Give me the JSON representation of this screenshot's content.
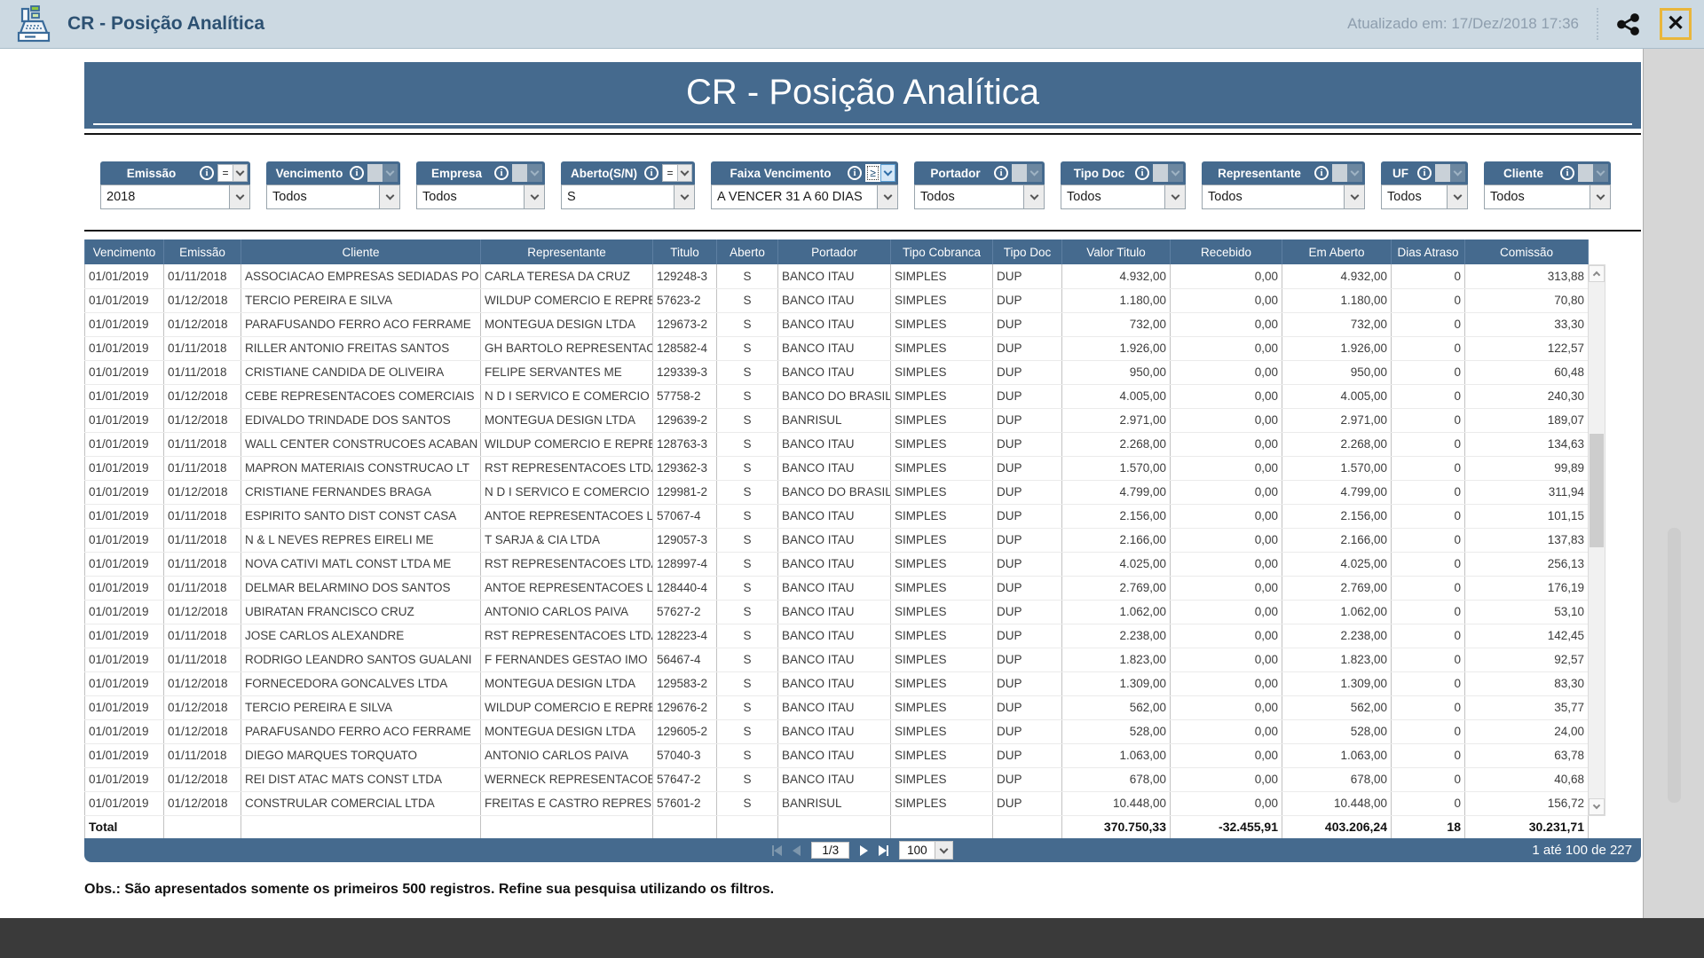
{
  "topbar": {
    "title": "CR - Posição Analítica",
    "updated": "Atualizado em: 17/Dez/2018 17:36"
  },
  "banner": {
    "title": "CR - Posição Analítica"
  },
  "filters": [
    {
      "label": "Emissão",
      "operator": "=",
      "state": "eq",
      "value": "2018"
    },
    {
      "label": "Vencimento",
      "operator": "",
      "state": "none",
      "value": "Todos"
    },
    {
      "label": "Empresa",
      "operator": "",
      "state": "none",
      "value": "Todos"
    },
    {
      "label": "Aberto(S/N)",
      "operator": "=",
      "state": "eq",
      "value": "S"
    },
    {
      "label": "Faixa Vencimento",
      "operator": "≥",
      "state": "focus",
      "value": "A VENCER 31 A 60 DIAS"
    },
    {
      "label": "Portador",
      "operator": "",
      "state": "none",
      "value": "Todos"
    },
    {
      "label": "Tipo Doc",
      "operator": "",
      "state": "none",
      "value": "Todos"
    },
    {
      "label": "Representante",
      "operator": "",
      "state": "none",
      "value": "Todos"
    },
    {
      "label": "UF",
      "operator": "",
      "state": "none",
      "value": "Todos"
    },
    {
      "label": "Cliente",
      "operator": "",
      "state": "none",
      "value": "Todos"
    }
  ],
  "table": {
    "columns": [
      "Vencimento",
      "Emissão",
      "Cliente",
      "Representante",
      "Titulo",
      "Aberto",
      "Portador",
      "Tipo Cobranca",
      "Tipo Doc",
      "Valor Titulo",
      "Recebido",
      "Em Aberto",
      "Dias Atraso",
      "Comissão"
    ],
    "rows": [
      [
        "01/01/2019",
        "01/11/2018",
        "ASSOCIACAO EMPRESAS SEDIADAS PO",
        "CARLA TERESA DA CRUZ",
        "129248-3",
        "S",
        "BANCO ITAU",
        "SIMPLES",
        "DUP",
        "4.932,00",
        "0,00",
        "4.932,00",
        "0",
        "313,88"
      ],
      [
        "01/01/2019",
        "01/12/2018",
        "TERCIO PEREIRA E SILVA",
        "WILDUP COMERCIO E REPRE",
        "57623-2",
        "S",
        "BANCO ITAU",
        "SIMPLES",
        "DUP",
        "1.180,00",
        "0,00",
        "1.180,00",
        "0",
        "70,80"
      ],
      [
        "01/01/2019",
        "01/12/2018",
        "PARAFUSANDO FERRO ACO  FERRAME",
        "MONTEGUA DESIGN LTDA",
        "129673-2",
        "S",
        "BANCO ITAU",
        "SIMPLES",
        "DUP",
        "732,00",
        "0,00",
        "732,00",
        "0",
        "33,30"
      ],
      [
        "01/01/2019",
        "01/11/2018",
        "RILLER ANTONIO FREITAS SANTOS",
        "GH BARTOLO REPRESENTAC",
        "128582-4",
        "S",
        "BANCO ITAU",
        "SIMPLES",
        "DUP",
        "1.926,00",
        "0,00",
        "1.926,00",
        "0",
        "122,57"
      ],
      [
        "01/01/2019",
        "01/11/2018",
        "CRISTIANE CANDIDA DE OLIVEIRA",
        "FELIPE SERVANTES ME",
        "129339-3",
        "S",
        "BANCO ITAU",
        "SIMPLES",
        "DUP",
        "950,00",
        "0,00",
        "950,00",
        "0",
        "60,48"
      ],
      [
        "01/01/2019",
        "01/12/2018",
        "CEBE REPRESENTACOES COMERCIAIS",
        "N D I SERVICO E COMERCIO",
        "57758-2",
        "S",
        "BANCO DO BRASIL",
        "SIMPLES",
        "DUP",
        "4.005,00",
        "0,00",
        "4.005,00",
        "0",
        "240,30"
      ],
      [
        "01/01/2019",
        "01/12/2018",
        "EDIVALDO TRINDADE DOS SANTOS",
        "MONTEGUA DESIGN LTDA",
        "129639-2",
        "S",
        "BANRISUL",
        "SIMPLES",
        "DUP",
        "2.971,00",
        "0,00",
        "2.971,00",
        "0",
        "189,07"
      ],
      [
        "01/01/2019",
        "01/11/2018",
        "WALL CENTER CONSTRUCOES ACABAN",
        "WILDUP COMERCIO E REPRE",
        "128763-3",
        "S",
        "BANCO ITAU",
        "SIMPLES",
        "DUP",
        "2.268,00",
        "0,00",
        "2.268,00",
        "0",
        "134,63"
      ],
      [
        "01/01/2019",
        "01/11/2018",
        "MAPRON MATERIAIS CONSTRUCAO LT",
        "RST REPRESENTACOES LTDA",
        "129362-3",
        "S",
        "BANCO ITAU",
        "SIMPLES",
        "DUP",
        "1.570,00",
        "0,00",
        "1.570,00",
        "0",
        "99,89"
      ],
      [
        "01/01/2019",
        "01/12/2018",
        "CRISTIANE FERNANDES BRAGA",
        "N D I SERVICO E COMERCIO",
        "129981-2",
        "S",
        "BANCO DO BRASIL",
        "SIMPLES",
        "DUP",
        "4.799,00",
        "0,00",
        "4.799,00",
        "0",
        "311,94"
      ],
      [
        "01/01/2019",
        "01/11/2018",
        "ESPIRITO SANTO DIST CONST CASA",
        "ANTOE REPRESENTACOES LT",
        "57067-4",
        "S",
        "BANCO ITAU",
        "SIMPLES",
        "DUP",
        "2.156,00",
        "0,00",
        "2.156,00",
        "0",
        "101,15"
      ],
      [
        "01/01/2019",
        "01/11/2018",
        "N & L NEVES REPRES EIRELI ME",
        "T SARJA & CIA LTDA",
        "129057-3",
        "S",
        "BANCO ITAU",
        "SIMPLES",
        "DUP",
        "2.166,00",
        "0,00",
        "2.166,00",
        "0",
        "137,83"
      ],
      [
        "01/01/2019",
        "01/11/2018",
        "NOVA CATIVI MATL CONST LTDA ME",
        "RST REPRESENTACOES LTDA",
        "128997-4",
        "S",
        "BANCO ITAU",
        "SIMPLES",
        "DUP",
        "4.025,00",
        "0,00",
        "4.025,00",
        "0",
        "256,13"
      ],
      [
        "01/01/2019",
        "01/11/2018",
        "DELMAR BELARMINO DOS SANTOS",
        "ANTOE REPRESENTACOES LT",
        "128440-4",
        "S",
        "BANCO ITAU",
        "SIMPLES",
        "DUP",
        "2.769,00",
        "0,00",
        "2.769,00",
        "0",
        "176,19"
      ],
      [
        "01/01/2019",
        "01/12/2018",
        "UBIRATAN FRANCISCO CRUZ",
        "ANTONIO CARLOS PAIVA",
        "57627-2",
        "S",
        "BANCO ITAU",
        "SIMPLES",
        "DUP",
        "1.062,00",
        "0,00",
        "1.062,00",
        "0",
        "53,10"
      ],
      [
        "01/01/2019",
        "01/11/2018",
        "JOSE CARLOS ALEXANDRE",
        "RST REPRESENTACOES LTDA",
        "128223-4",
        "S",
        "BANCO ITAU",
        "SIMPLES",
        "DUP",
        "2.238,00",
        "0,00",
        "2.238,00",
        "0",
        "142,45"
      ],
      [
        "01/01/2019",
        "01/11/2018",
        "RODRIGO LEANDRO SANTOS GUALANI",
        "F FERNANDES GESTAO IMO",
        "56467-4",
        "S",
        "BANCO ITAU",
        "SIMPLES",
        "DUP",
        "1.823,00",
        "0,00",
        "1.823,00",
        "0",
        "92,57"
      ],
      [
        "01/01/2019",
        "01/12/2018",
        "FORNECEDORA GONCALVES LTDA",
        "MONTEGUA DESIGN LTDA",
        "129583-2",
        "S",
        "BANCO ITAU",
        "SIMPLES",
        "DUP",
        "1.309,00",
        "0,00",
        "1.309,00",
        "0",
        "83,30"
      ],
      [
        "01/01/2019",
        "01/12/2018",
        "TERCIO PEREIRA E SILVA",
        "WILDUP COMERCIO E REPRE",
        "129676-2",
        "S",
        "BANCO ITAU",
        "SIMPLES",
        "DUP",
        "562,00",
        "0,00",
        "562,00",
        "0",
        "35,77"
      ],
      [
        "01/01/2019",
        "01/12/2018",
        "PARAFUSANDO FERRO ACO  FERRAME",
        "MONTEGUA DESIGN LTDA",
        "129605-2",
        "S",
        "BANCO ITAU",
        "SIMPLES",
        "DUP",
        "528,00",
        "0,00",
        "528,00",
        "0",
        "24,00"
      ],
      [
        "01/01/2019",
        "01/11/2018",
        "DIEGO MARQUES TORQUATO",
        "ANTONIO CARLOS PAIVA",
        "57040-3",
        "S",
        "BANCO ITAU",
        "SIMPLES",
        "DUP",
        "1.063,00",
        "0,00",
        "1.063,00",
        "0",
        "63,78"
      ],
      [
        "01/01/2019",
        "01/12/2018",
        "REI DIST ATAC MATS CONST LTDA",
        "WERNECK REPRESENTACOES",
        "57647-2",
        "S",
        "BANCO ITAU",
        "SIMPLES",
        "DUP",
        "678,00",
        "0,00",
        "678,00",
        "0",
        "40,68"
      ],
      [
        "01/01/2019",
        "01/12/2018",
        "CONSTRULAR COMERCIAL LTDA",
        "FREITAS E CASTRO REPRESE",
        "57601-2",
        "S",
        "BANRISUL",
        "SIMPLES",
        "DUP",
        "10.448,00",
        "0,00",
        "10.448,00",
        "0",
        "156,72"
      ]
    ],
    "total_label": "Total",
    "totals": [
      "370.750,33",
      "-32.455,91",
      "403.206,24",
      "18",
      "30.231,71"
    ]
  },
  "pagination": {
    "page_indicator": "1/3",
    "page_size": "100",
    "range_label": "1 até 100 de 227"
  },
  "footnote": "Obs.: São apresentados somente os primeiros 500 registros. Refine sua pesquisa utilizando os filtros.",
  "colors": {
    "accent": "#456a8e",
    "topbar_bg": "#ccd9e2",
    "close_border": "#e9b63b"
  }
}
